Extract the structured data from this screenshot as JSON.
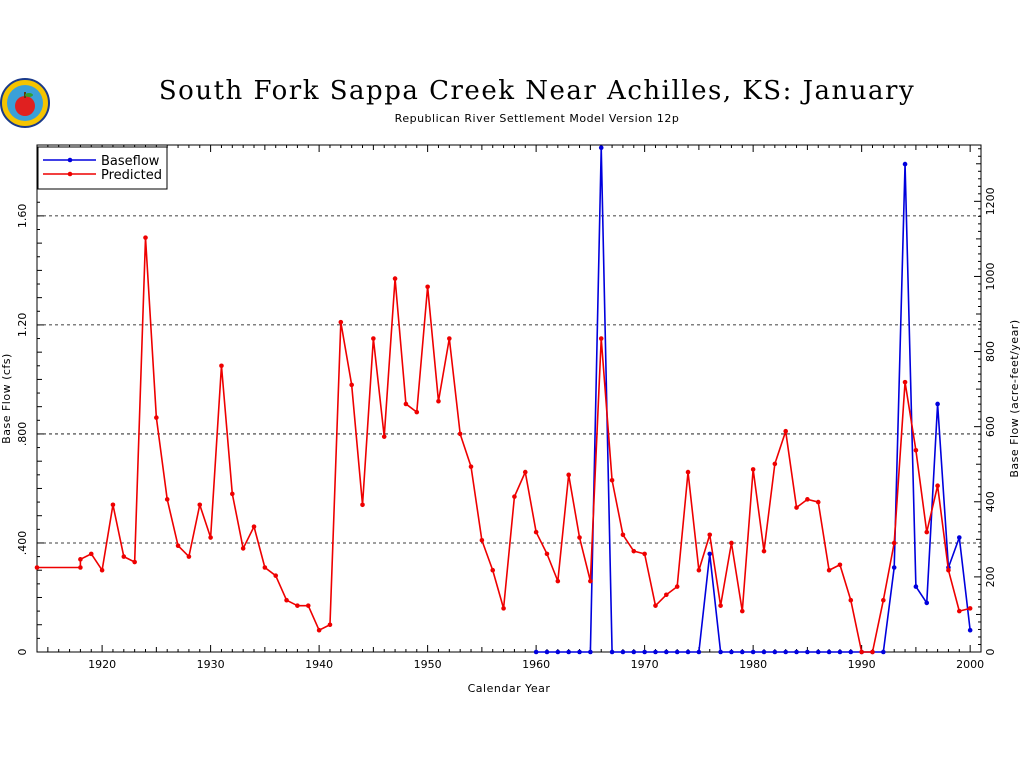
{
  "header": {
    "title": "South Fork Sappa Creek Near Achilles, KS: January",
    "subtitle": "Republican River Settlement Model Version 12p"
  },
  "colors": {
    "baseflow": "#0000dd",
    "predicted": "#ee0000",
    "grid": "#000000"
  },
  "chart_data": {
    "type": "line",
    "title": "South Fork Sappa Creek Near Achilles, KS: January",
    "xlabel": "Calendar Year",
    "ylabel": "Base Flow (cfs)",
    "ylabel_right": "Base Flow (acre-feet/year)",
    "xlim": [
      1914,
      2001
    ],
    "ylim": [
      0,
      1.86
    ],
    "ylim_right": [
      0,
      1350
    ],
    "x_ticks": [
      1920,
      1930,
      1940,
      1950,
      1960,
      1970,
      1980,
      1990,
      2000
    ],
    "x_tick_labels": [
      "1920",
      "1930",
      "1940",
      "1950",
      "1960",
      "1970",
      "1980",
      "1990",
      "2000"
    ],
    "y_ticks": [
      0,
      0.4,
      0.8,
      1.2,
      1.6
    ],
    "y_tick_labels": [
      "0",
      ".400",
      ".800",
      "1.20",
      "1.60"
    ],
    "y_right_ticks": [
      0,
      200,
      400,
      600,
      800,
      1000,
      1200
    ],
    "y_right_tick_labels": [
      "0",
      "200",
      "400",
      "600",
      "800",
      "1000",
      "1200"
    ],
    "grid": "horizontal dashed",
    "legend_position": "top-left",
    "series": [
      {
        "name": "Baseflow",
        "x": [
          1960,
          1961,
          1962,
          1963,
          1964,
          1965,
          1966,
          1967,
          1968,
          1969,
          1970,
          1971,
          1972,
          1973,
          1974,
          1975,
          1976,
          1977,
          1978,
          1979,
          1980,
          1981,
          1982,
          1983,
          1984,
          1985,
          1986,
          1987,
          1988,
          1989,
          1990,
          1991,
          1992,
          1993,
          1994,
          1995,
          1996,
          1997,
          1998,
          1999,
          2000
        ],
        "values": [
          0,
          0,
          0,
          0,
          0,
          0,
          1.85,
          0,
          0,
          0,
          0,
          0,
          0,
          0,
          0,
          0,
          0.36,
          0,
          0,
          0,
          0,
          0,
          0,
          0,
          0,
          0,
          0,
          0,
          0,
          0,
          0,
          0,
          0,
          0.31,
          1.79,
          0.24,
          0.18,
          0.91,
          0.31,
          0.42,
          0.08
        ]
      },
      {
        "name": "Predicted",
        "x": [
          1914,
          1918,
          1918,
          1919,
          1920,
          1921,
          1922,
          1923,
          1924,
          1925,
          1926,
          1927,
          1928,
          1929,
          1930,
          1931,
          1932,
          1933,
          1934,
          1935,
          1936,
          1937,
          1938,
          1939,
          1940,
          1941,
          1942,
          1943,
          1944,
          1945,
          1946,
          1947,
          1948,
          1949,
          1950,
          1951,
          1952,
          1953,
          1954,
          1955,
          1956,
          1957,
          1958,
          1959,
          1960,
          1961,
          1962,
          1963,
          1964,
          1965,
          1966,
          1967,
          1968,
          1969,
          1970,
          1971,
          1972,
          1973,
          1974,
          1975,
          1976,
          1977,
          1978,
          1979,
          1980,
          1981,
          1982,
          1983,
          1984,
          1985,
          1986,
          1987,
          1988,
          1989,
          1990,
          1991,
          1992,
          1993,
          1994,
          1995,
          1996,
          1997,
          1998,
          1999,
          2000
        ],
        "values": [
          0.31,
          0.31,
          0.34,
          0.36,
          0.3,
          0.54,
          0.35,
          0.33,
          1.52,
          0.86,
          0.56,
          0.39,
          0.35,
          0.54,
          0.42,
          1.05,
          0.58,
          0.38,
          0.46,
          0.31,
          0.28,
          0.19,
          0.17,
          0.17,
          0.08,
          0.1,
          1.21,
          0.98,
          0.54,
          1.15,
          0.79,
          1.37,
          0.91,
          0.88,
          1.34,
          0.92,
          1.15,
          0.8,
          0.68,
          0.41,
          0.3,
          0.16,
          0.57,
          0.66,
          0.44,
          0.36,
          0.26,
          0.65,
          0.42,
          0.26,
          1.15,
          0.63,
          0.43,
          0.37,
          0.36,
          0.17,
          0.21,
          0.24,
          0.66,
          0.3,
          0.43,
          0.17,
          0.4,
          0.15,
          0.67,
          0.37,
          0.69,
          0.81,
          0.53,
          0.56,
          0.55,
          0.3,
          0.32,
          0.19,
          0,
          0,
          0.19,
          0.4,
          0.99,
          0.74,
          0.44,
          0.61,
          0.3,
          0.15,
          0.16
        ]
      }
    ]
  }
}
